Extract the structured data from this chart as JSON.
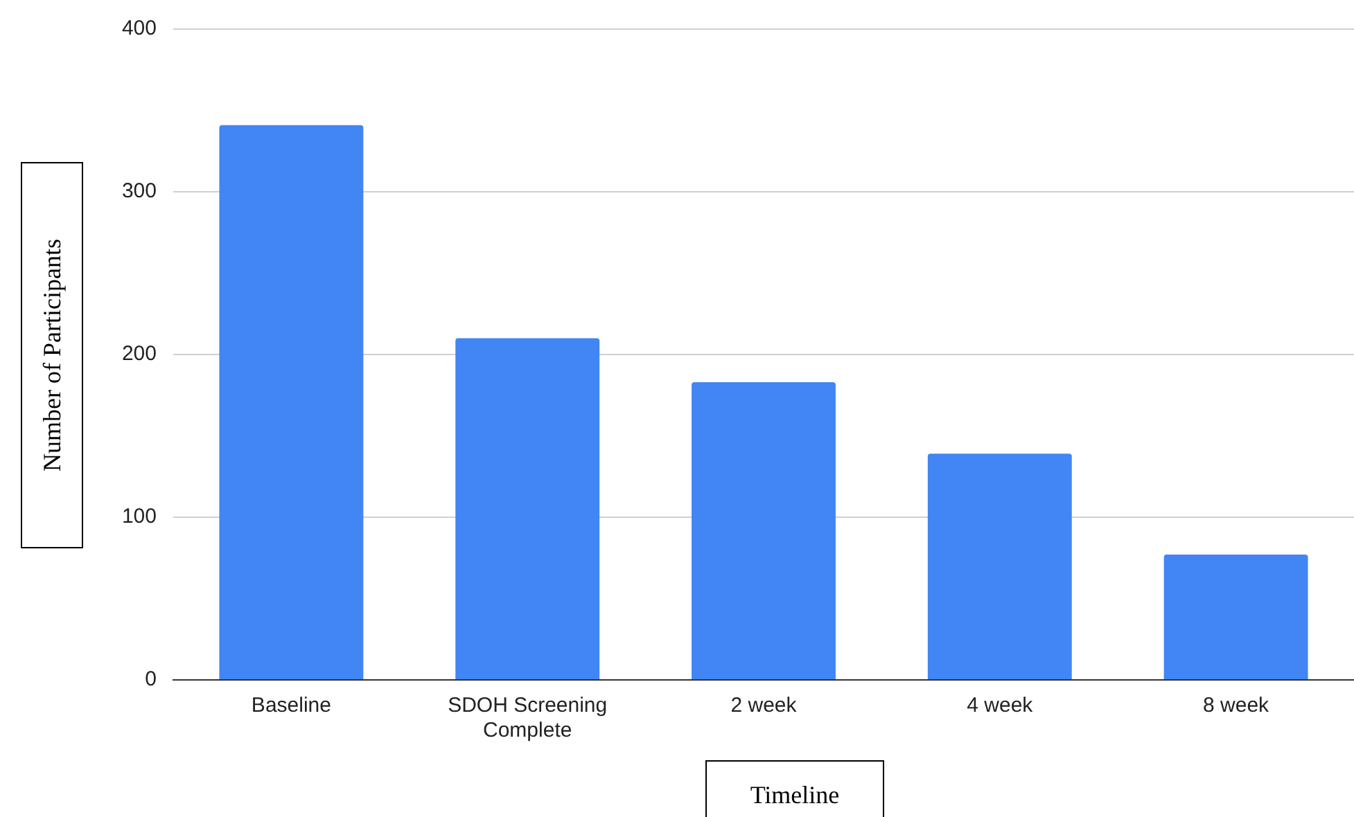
{
  "chart_data": {
    "type": "bar",
    "xlabel": "Timeline",
    "ylabel": "Number of Participants",
    "categories": [
      "Baseline",
      "SDOH Screening Complete",
      "2 week",
      "4 week",
      "8 week"
    ],
    "values": [
      341,
      210,
      183,
      139,
      77
    ],
    "color": "#4285f4",
    "ylim": [
      0,
      400
    ],
    "yticks": [
      0,
      100,
      200,
      300,
      400
    ],
    "grid": "y",
    "legend": false
  }
}
